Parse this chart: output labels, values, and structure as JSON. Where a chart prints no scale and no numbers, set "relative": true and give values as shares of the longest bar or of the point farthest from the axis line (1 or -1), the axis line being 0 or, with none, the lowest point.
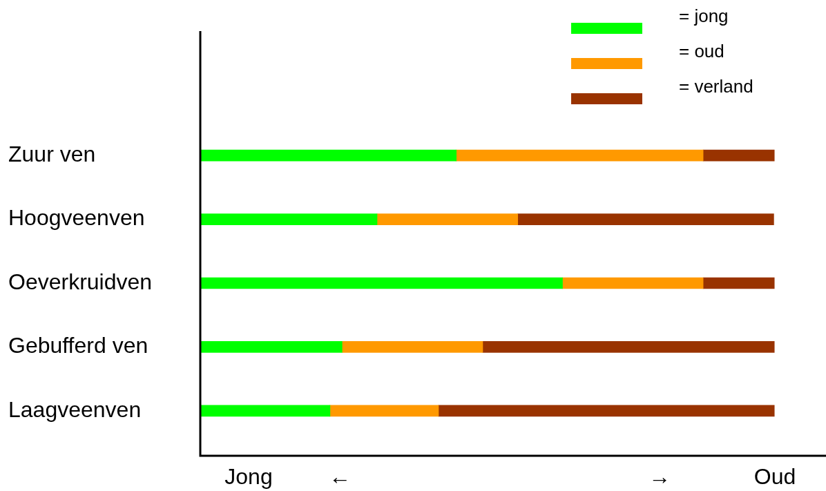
{
  "chart_data": {
    "type": "bar",
    "orientation": "horizontal",
    "stacked": true,
    "relative": true,
    "legend": "top right",
    "categories": [
      "Zuur ven",
      "Hoogveenven",
      "Oeverkruidven",
      "Gebufferd ven",
      "Laagveenven"
    ],
    "series": [
      {
        "name": "= jong",
        "color": "#00ff00",
        "values": [
          0.446,
          0.308,
          0.631,
          0.247,
          0.226
        ]
      },
      {
        "name": "= oud",
        "color": "#ff9900",
        "values": [
          0.43,
          0.245,
          0.245,
          0.245,
          0.189
        ]
      },
      {
        "name": "= verland",
        "color": "#993300",
        "values": [
          0.124,
          0.446,
          0.124,
          0.508,
          0.585
        ]
      }
    ],
    "annotations": [
      "Jong",
      "←",
      "→",
      "Oud"
    ]
  }
}
